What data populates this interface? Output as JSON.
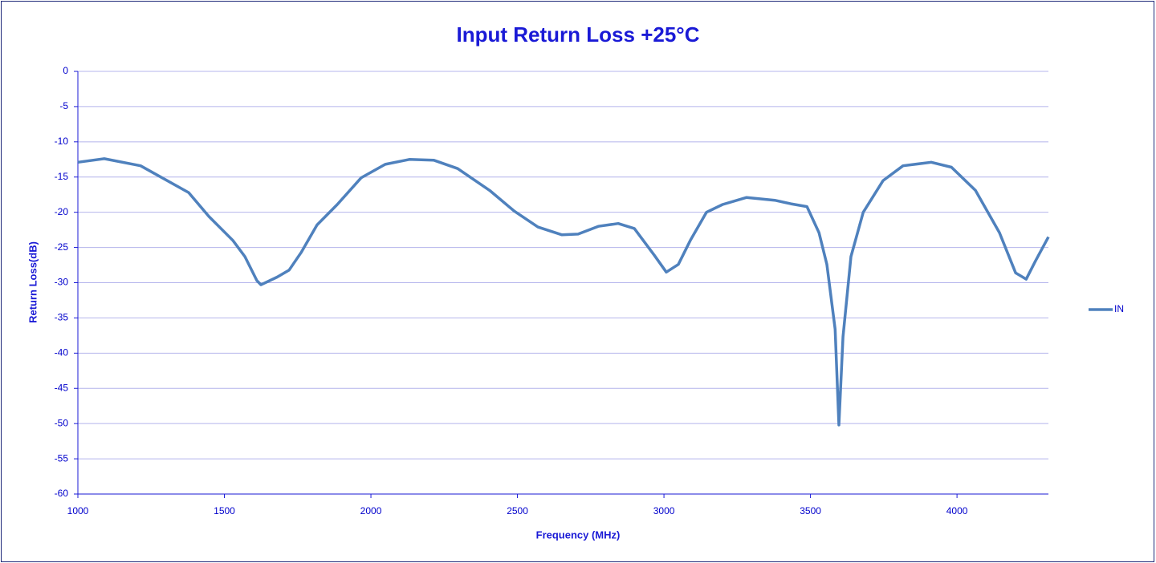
{
  "chart_data": {
    "type": "line",
    "title": "Input Return Loss +25°C",
    "x_label": "Frequency (MHz)",
    "y_label": "Return Loss(dB)",
    "xlim": [
      1000,
      4312
    ],
    "xticks": [
      1000,
      1500,
      2000,
      2500,
      3000,
      3500,
      4000
    ],
    "ylim": [
      -60,
      0
    ],
    "yticks": [
      0,
      -5,
      -10,
      -15,
      -20,
      -25,
      -30,
      -35,
      -40,
      -45,
      -50,
      -55,
      -60
    ],
    "grid": true,
    "legend": "right",
    "x": [
      1000,
      1090,
      1214,
      1378,
      1447,
      1529,
      1570,
      1611,
      1625,
      1680,
      1721,
      1762,
      1816,
      1885,
      1967,
      2049,
      2131,
      2214,
      2296,
      2405,
      2488,
      2570,
      2652,
      2707,
      2776,
      2844,
      2899,
      2967,
      3008,
      3049,
      3090,
      3145,
      3200,
      3282,
      3378,
      3433,
      3488,
      3529,
      3556,
      3584,
      3597,
      3611,
      3638,
      3680,
      3748,
      3816,
      3912,
      3981,
      4063,
      4145,
      4200,
      4236,
      4268,
      4312
    ],
    "series": [
      {
        "name": "IN",
        "color": "#4f81bd",
        "values": [
          -12.9,
          -12.4,
          -13.4,
          -17.2,
          -20.6,
          -24,
          -26.3,
          -29.7,
          -30.3,
          -29.2,
          -28.2,
          -25.7,
          -21.8,
          -18.9,
          -15.1,
          -13.2,
          -12.5,
          -12.6,
          -13.8,
          -16.9,
          -19.8,
          -22.1,
          -23.2,
          -23.1,
          -22,
          -21.6,
          -22.3,
          -26.1,
          -28.5,
          -27.4,
          -24,
          -20,
          -18.9,
          -17.9,
          -18.3,
          -18.8,
          -19.2,
          -22.9,
          -27.4,
          -36.6,
          -50.2,
          -37.7,
          -26.3,
          -20,
          -15.5,
          -13.4,
          -12.9,
          -13.6,
          -16.9,
          -22.9,
          -28.6,
          -29.5,
          -26.9,
          -23.5
        ]
      }
    ]
  }
}
